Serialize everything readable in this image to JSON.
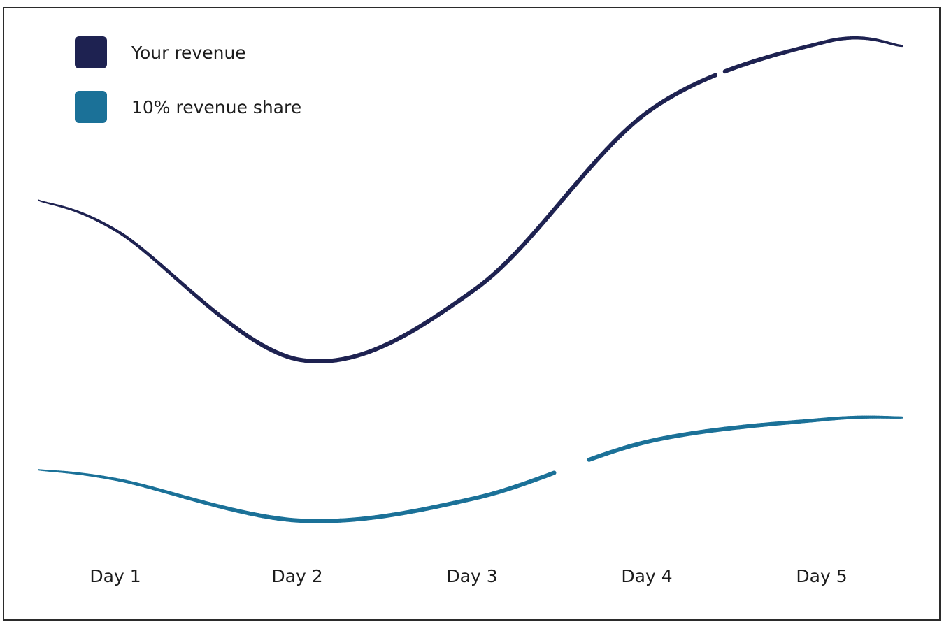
{
  "chart_data": {
    "type": "line",
    "categories": [
      "Day 1",
      "Day 2",
      "Day 3",
      "Day 4",
      "Day 5"
    ],
    "series": [
      {
        "name": "Your revenue",
        "color": "#1e2251",
        "values": [
          75,
          30,
          55,
          118,
          142
        ]
      },
      {
        "name": "10% revenue share",
        "color": "#1b7198",
        "values": [
          7.5,
          3.0,
          5.5,
          11.8,
          14.2
        ]
      }
    ],
    "title": "",
    "xlabel": "",
    "ylabel": "",
    "grid": false,
    "legend": "top-left"
  }
}
